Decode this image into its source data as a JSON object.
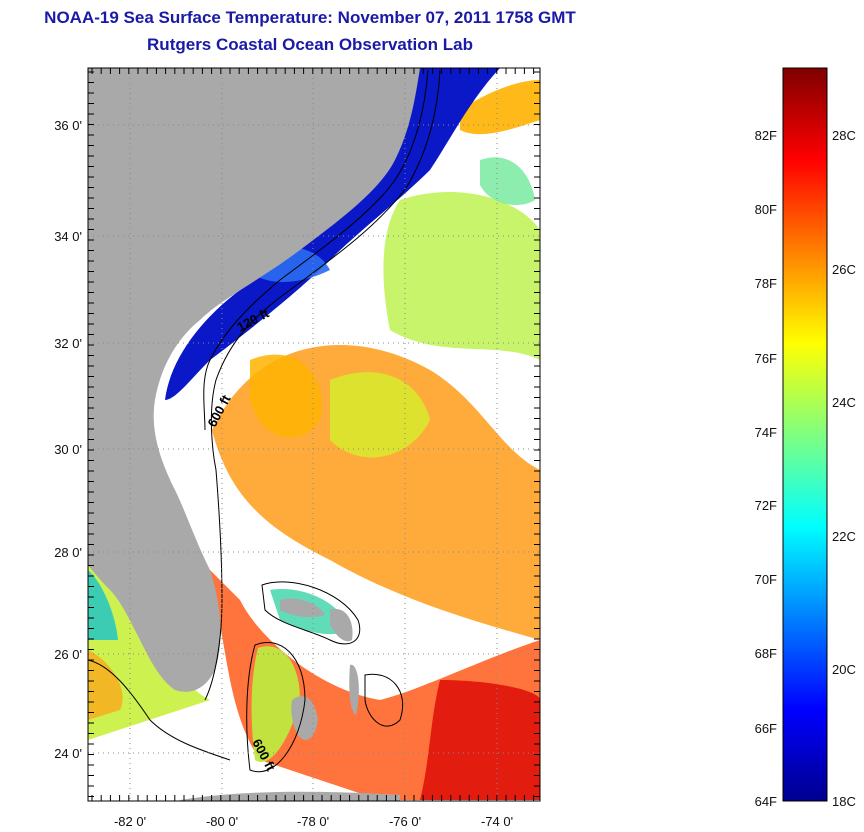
{
  "header": {
    "title": "NOAA-19 Sea Surface Temperature:  November 07, 2011 1758 GMT",
    "subtitle": "Rutgers Coastal Ocean Observation Lab"
  },
  "map": {
    "lat_ticks": [
      "36 0'",
      "34 0'",
      "32 0'",
      "30 0'",
      "28 0'",
      "26 0'",
      "24 0'"
    ],
    "lon_ticks": [
      "-82 0'",
      "-80 0'",
      "-78 0'",
      "-76 0'",
      "-74 0'"
    ],
    "contour_labels": [
      "120 ft",
      "600 ft",
      "600 ft"
    ],
    "land_color": "#a9a9a9",
    "cloud_color": "#ffffff"
  },
  "colorbar": {
    "fahrenheit_labels": [
      "82F",
      "80F",
      "78F",
      "76F",
      "74F",
      "72F",
      "70F",
      "68F",
      "66F",
      "64F"
    ],
    "celsius_labels": [
      "28C",
      "26C",
      "24C",
      "22C",
      "20C",
      "18C"
    ],
    "colors": [
      "#7f0000",
      "#ff0000",
      "#ff8000",
      "#ffff00",
      "#80ff80",
      "#00ffff",
      "#0080ff",
      "#0000ff",
      "#00008f"
    ]
  }
}
